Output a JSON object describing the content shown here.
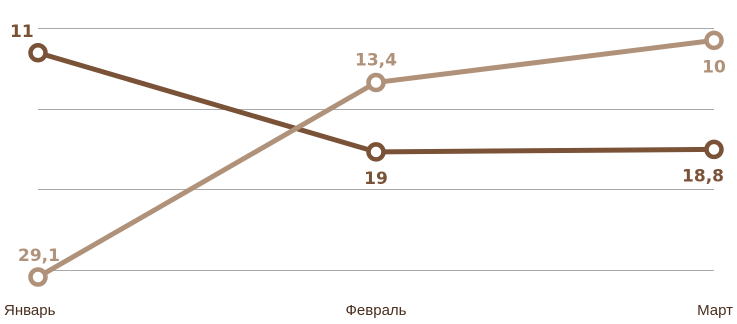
{
  "chart_data": {
    "type": "line",
    "title": "",
    "xlabel": "",
    "ylabel": "",
    "categories": [
      "Январь",
      "Февраль",
      "Март"
    ],
    "y_axis": {
      "inverted": true,
      "ylim": [
        9,
        29.5
      ],
      "gridlines": [
        9,
        15.5,
        22,
        28.5
      ],
      "tick_labels_shown": false
    },
    "grid": "horizontal",
    "legend": "none",
    "series": [
      {
        "values": [
          11,
          19,
          18.8
        ],
        "labels": [
          "11",
          "19",
          "18,8"
        ],
        "color": "#7a5237"
      },
      {
        "values": [
          29.1,
          13.4,
          10
        ],
        "labels": [
          "29,1",
          "13,4",
          "10"
        ],
        "color": "#b0927a"
      }
    ]
  }
}
